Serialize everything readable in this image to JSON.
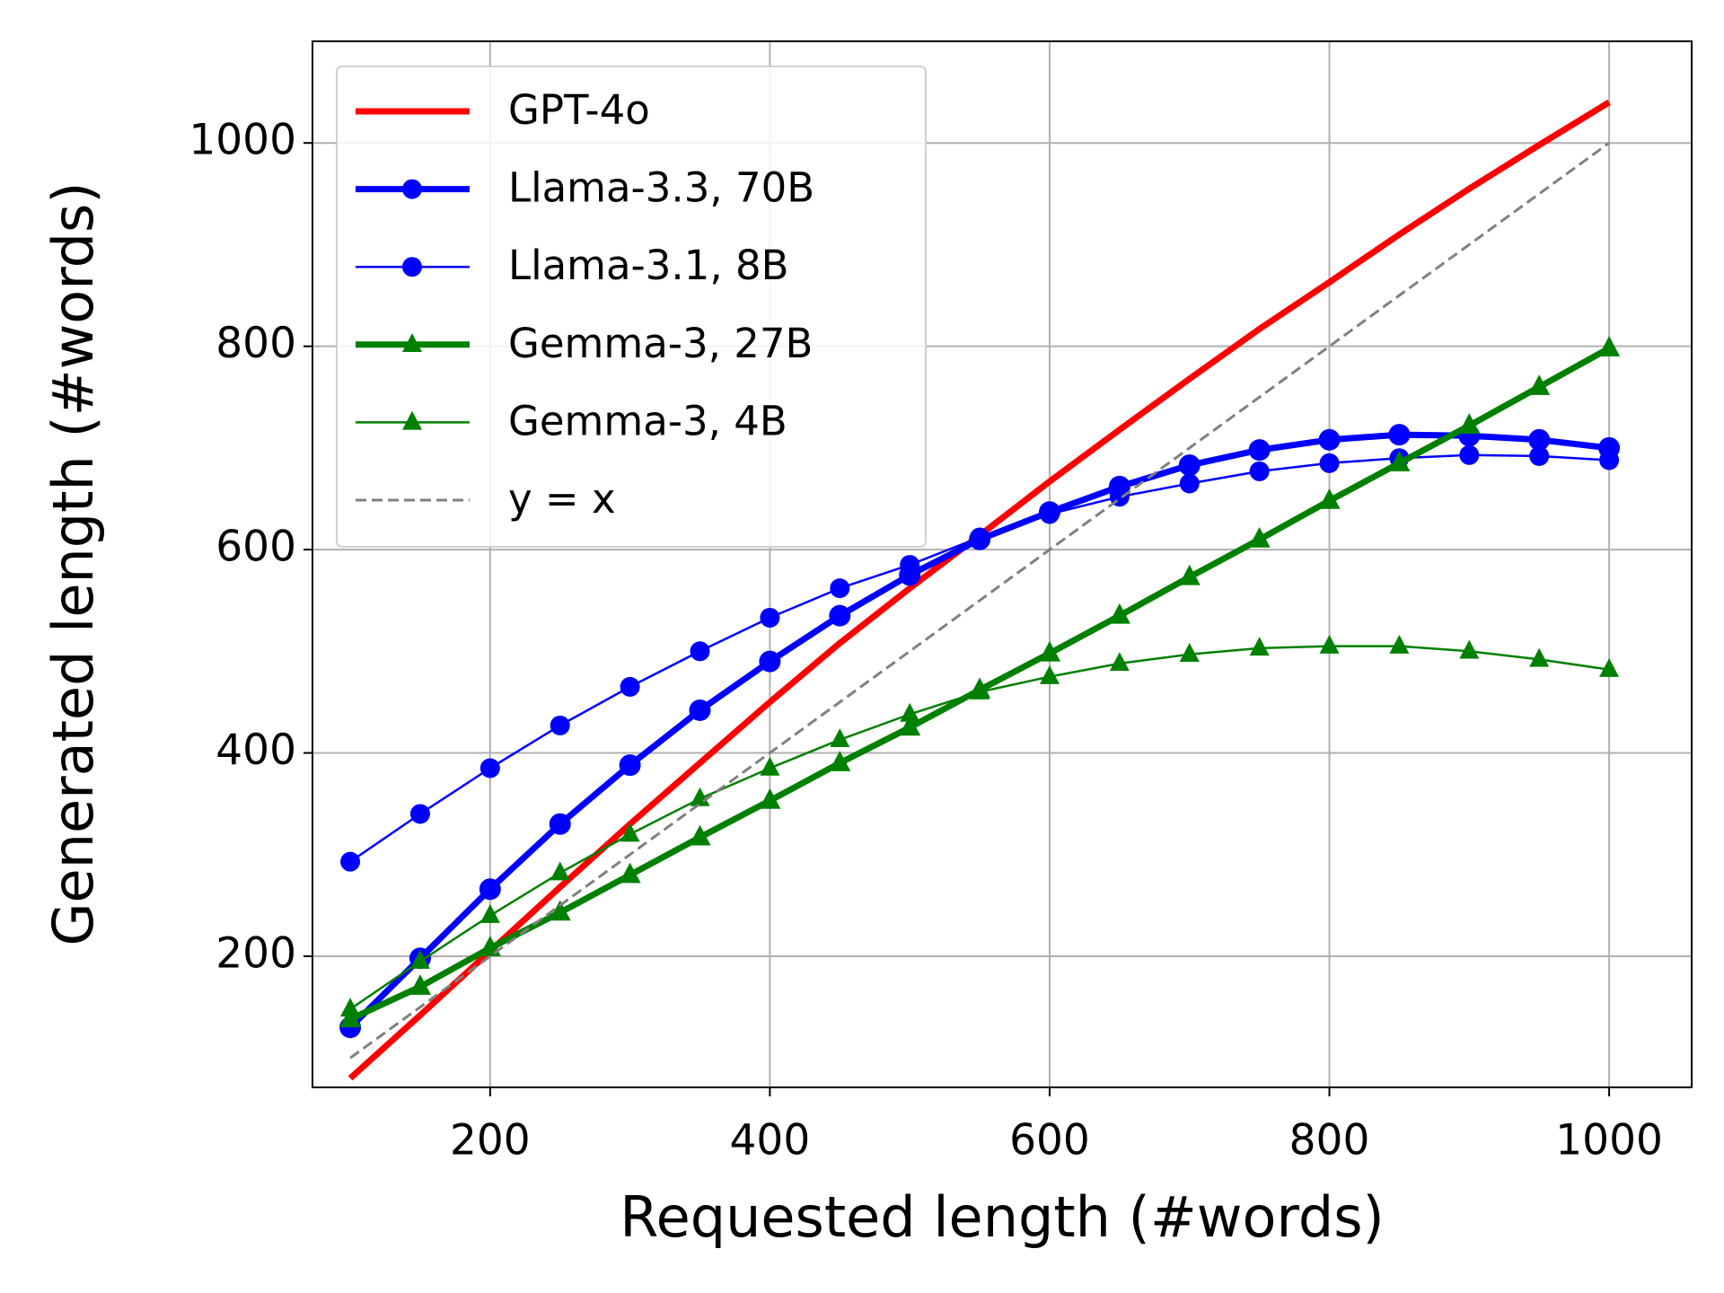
{
  "chart_data": {
    "type": "line",
    "x_label": "Requested length (#words)",
    "y_label": "Generated length (#words)",
    "x": [
      100,
      150,
      200,
      250,
      300,
      350,
      400,
      450,
      500,
      550,
      600,
      650,
      700,
      750,
      800,
      850,
      900,
      950,
      1000
    ],
    "xlim": [
      73,
      1059
    ],
    "ylim": [
      71,
      1100
    ],
    "xticks": [
      200,
      400,
      600,
      800,
      1000
    ],
    "yticks": [
      200,
      400,
      600,
      800,
      1000
    ],
    "grid": true,
    "legend": "upper left",
    "series": [
      {
        "name": "GPT-4o",
        "color": "#ff0000",
        "linewidth": "thick",
        "marker": "none",
        "values": [
          80,
          142,
          205,
          268,
          330,
          390,
          450,
          508,
          562,
          614,
          667,
          718,
          768,
          817,
          863,
          910,
          955,
          998,
          1040
        ]
      },
      {
        "name": "Llama-3.3, 70B",
        "color": "#0000ff",
        "linewidth": "thick",
        "marker": "circle",
        "values": [
          130,
          198,
          266,
          330,
          388,
          442,
          490,
          535,
          575,
          610,
          637,
          662,
          683,
          698,
          708,
          713,
          712,
          708,
          700
        ]
      },
      {
        "name": "Llama-3.1, 8B",
        "color": "#0000ff",
        "linewidth": "thin",
        "marker": "circle",
        "values": [
          293,
          340,
          385,
          427,
          465,
          500,
          533,
          562,
          585,
          612,
          635,
          652,
          665,
          677,
          685,
          690,
          693,
          692,
          688
        ]
      },
      {
        "name": "Gemma-3, 27B",
        "color": "#008000",
        "linewidth": "thick",
        "marker": "triangle",
        "values": [
          138,
          170,
          208,
          243,
          280,
          317,
          353,
          390,
          425,
          462,
          498,
          535,
          573,
          610,
          648,
          685,
          722,
          760,
          798
        ]
      },
      {
        "name": "Gemma-3, 4B",
        "color": "#008000",
        "linewidth": "thin",
        "marker": "triangle",
        "values": [
          148,
          195,
          240,
          282,
          320,
          355,
          385,
          413,
          438,
          460,
          475,
          488,
          497,
          503,
          505,
          505,
          500,
          492,
          482
        ]
      },
      {
        "name": "y = x",
        "color": "#808080",
        "linewidth": "dashed",
        "marker": "none",
        "values": [
          100,
          150,
          200,
          250,
          300,
          350,
          400,
          450,
          500,
          550,
          600,
          650,
          700,
          750,
          800,
          850,
          900,
          950,
          1000
        ]
      }
    ]
  }
}
